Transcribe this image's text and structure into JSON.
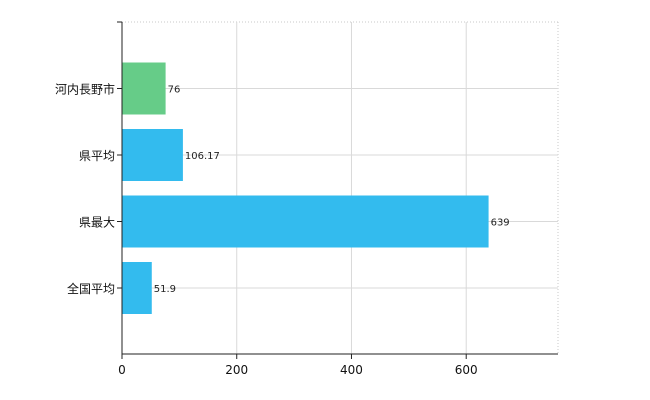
{
  "chart_data": {
    "type": "bar",
    "orientation": "horizontal",
    "categories": [
      "河内長野市",
      "県平均",
      "県最大",
      "全国平均"
    ],
    "values": [
      76,
      106.17,
      639,
      51.9
    ],
    "data_labels": [
      "76",
      "106.17",
      "639",
      "51.9"
    ],
    "bar_colors": [
      "#66cc88",
      "#33bbee",
      "#33bbee",
      "#33bbee"
    ],
    "xlim": [
      0,
      760
    ],
    "x_ticks": [
      0,
      200,
      400,
      600
    ],
    "x_tick_labels": [
      "0",
      "200",
      "400",
      "600"
    ],
    "grid": true,
    "title": "",
    "xlabel": "",
    "ylabel": ""
  }
}
